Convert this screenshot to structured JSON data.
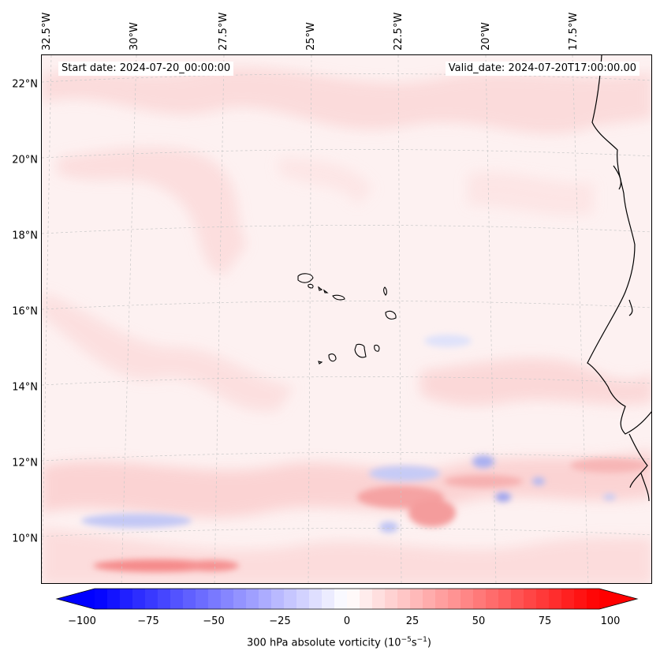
{
  "lat_labels": [
    "22°N",
    "20°N",
    "18°N",
    "16°N",
    "14°N",
    "12°N",
    "10°N"
  ],
  "lon_labels": [
    "32.5°W",
    "30°W",
    "27.5°W",
    "25°W",
    "22.5°W",
    "20°W",
    "17.5°W"
  ],
  "start_date": "Start date: 2024-07-20_00:00:00",
  "valid_date": "Valid_date: 2024-07-20T17:00:00.00",
  "colorbar": {
    "ticks": [
      "−100",
      "−75",
      "−50",
      "−25",
      "0",
      "25",
      "50",
      "75",
      "100"
    ],
    "label_main": "300 hPa absolute vorticity (10",
    "label_sup1": "−5",
    "label_mid": "s",
    "label_sup2": "−1",
    "label_end": ")",
    "min": -100,
    "max": 100,
    "colors": {
      "negative": "#0000ff",
      "zero": "#ffffff",
      "positive": "#ff0000"
    }
  }
}
